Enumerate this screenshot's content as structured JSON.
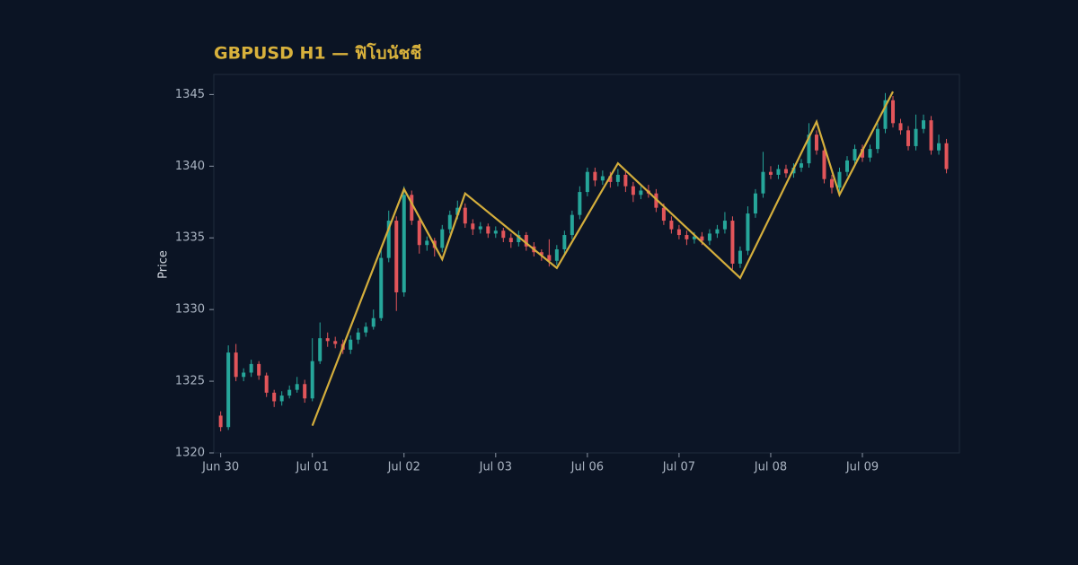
{
  "chart_data": {
    "type": "candlestick",
    "title": "GBPUSD H1 — ฟิโบนัชชี",
    "y_label": "Price",
    "up_color": "#26a69a",
    "down_color": "#e2555a",
    "xlim": [
      -0.9,
      96.7
    ],
    "xticks": [
      {
        "value": 0,
        "label": "Jun 30"
      },
      {
        "value": 12,
        "label": "Jul 01"
      },
      {
        "value": 24,
        "label": "Jul 02"
      },
      {
        "value": 36,
        "label": "Jul 03"
      },
      {
        "value": 48,
        "label": "Jul 06"
      },
      {
        "value": 60,
        "label": "Jul 07"
      },
      {
        "value": 72,
        "label": "Jul 08"
      },
      {
        "value": 84,
        "label": "Jul 09"
      }
    ],
    "ylim": [
      1320,
      1346.4
    ],
    "yticks": [
      1320,
      1325,
      1330,
      1335,
      1340,
      1345
    ],
    "open": [
      1322.6,
      1321.8,
      1327.0,
      1325.3,
      1325.6,
      1326.2,
      1325.4,
      1324.2,
      1323.6,
      1324.0,
      1324.4,
      1324.8,
      1323.8,
      1326.4,
      1328.0,
      1327.8,
      1327.6,
      1327.2,
      1327.9,
      1328.4,
      1328.8,
      1329.4,
      1333.6,
      1336.2,
      1331.2,
      1338.0,
      1336.2,
      1334.5,
      1334.8,
      1334.3,
      1335.6,
      1336.6,
      1337.1,
      1336.0,
      1335.6,
      1335.8,
      1335.3,
      1335.5,
      1335.0,
      1334.7,
      1335.2,
      1334.4,
      1334.0,
      1333.8,
      1333.4,
      1334.2,
      1335.2,
      1336.6,
      1338.2,
      1339.6,
      1339.0,
      1339.3,
      1338.9,
      1339.4,
      1338.6,
      1338.0,
      1338.3,
      1338.1,
      1337.1,
      1336.2,
      1335.6,
      1335.2,
      1334.9,
      1335.1,
      1334.8,
      1335.3,
      1335.6,
      1336.2,
      1333.2,
      1334.1,
      1336.7,
      1338.1,
      1339.6,
      1339.4,
      1339.8,
      1339.5,
      1339.9,
      1340.2,
      1342.2,
      1341.1,
      1339.1,
      1338.5,
      1339.6,
      1340.4,
      1341.2,
      1340.6,
      1341.2,
      1342.6,
      1344.6,
      1343.0,
      1342.5,
      1341.4,
      1342.6,
      1343.2,
      1341.1,
      1341.6
    ],
    "high": [
      1322.9,
      1327.5,
      1327.6,
      1325.9,
      1326.5,
      1326.4,
      1325.6,
      1324.4,
      1324.3,
      1324.7,
      1325.3,
      1325.1,
      1328.0,
      1329.1,
      1328.4,
      1328.1,
      1327.9,
      1328.2,
      1328.7,
      1329.1,
      1330.0,
      1334.2,
      1336.9,
      1336.5,
      1338.6,
      1338.3,
      1336.5,
      1335.1,
      1335.0,
      1335.9,
      1336.9,
      1337.6,
      1337.4,
      1336.3,
      1336.1,
      1336.0,
      1335.8,
      1335.7,
      1335.3,
      1335.5,
      1335.4,
      1334.7,
      1334.2,
      1334.9,
      1334.5,
      1335.5,
      1336.9,
      1338.6,
      1339.9,
      1339.9,
      1339.7,
      1339.6,
      1339.8,
      1339.7,
      1338.9,
      1338.6,
      1338.7,
      1338.4,
      1337.4,
      1336.5,
      1335.9,
      1335.5,
      1335.4,
      1335.4,
      1335.6,
      1335.9,
      1336.8,
      1336.5,
      1334.4,
      1337.2,
      1338.4,
      1341.0,
      1340.0,
      1340.1,
      1340.1,
      1340.2,
      1340.5,
      1343.0,
      1342.5,
      1341.4,
      1339.4,
      1339.9,
      1340.7,
      1341.5,
      1341.5,
      1341.5,
      1343.0,
      1345.1,
      1344.9,
      1343.3,
      1342.8,
      1343.6,
      1343.6,
      1343.5,
      1342.2,
      1341.9
    ],
    "low": [
      1321.5,
      1321.6,
      1325.0,
      1325.0,
      1325.3,
      1325.1,
      1323.9,
      1323.2,
      1323.3,
      1323.8,
      1324.2,
      1323.5,
      1323.6,
      1326.2,
      1327.4,
      1327.3,
      1326.9,
      1326.9,
      1327.6,
      1328.1,
      1328.6,
      1329.2,
      1333.3,
      1329.9,
      1330.9,
      1335.9,
      1333.9,
      1334.1,
      1333.7,
      1334.0,
      1335.3,
      1336.3,
      1335.7,
      1335.2,
      1335.3,
      1335.0,
      1335.0,
      1334.7,
      1334.3,
      1334.4,
      1334.1,
      1333.7,
      1333.4,
      1333.0,
      1333.1,
      1333.9,
      1334.9,
      1336.3,
      1337.9,
      1338.6,
      1338.7,
      1338.5,
      1338.6,
      1338.2,
      1337.5,
      1337.7,
      1337.8,
      1336.8,
      1335.9,
      1335.3,
      1334.9,
      1334.5,
      1334.6,
      1334.5,
      1334.5,
      1335.0,
      1335.3,
      1332.8,
      1332.9,
      1333.8,
      1336.4,
      1337.8,
      1339.1,
      1339.1,
      1339.2,
      1339.2,
      1339.6,
      1339.9,
      1340.8,
      1338.8,
      1338.1,
      1338.2,
      1339.3,
      1340.1,
      1340.3,
      1340.3,
      1340.9,
      1342.3,
      1342.7,
      1342.2,
      1341.1,
      1341.1,
      1342.3,
      1340.8,
      1340.8,
      1339.5
    ],
    "close": [
      1321.8,
      1327.0,
      1325.3,
      1325.6,
      1326.2,
      1325.4,
      1324.2,
      1323.6,
      1324.0,
      1324.4,
      1324.8,
      1323.8,
      1326.4,
      1328.0,
      1327.8,
      1327.6,
      1327.2,
      1327.9,
      1328.4,
      1328.8,
      1329.4,
      1333.6,
      1336.2,
      1331.2,
      1338.0,
      1336.2,
      1334.5,
      1334.8,
      1334.3,
      1335.6,
      1336.6,
      1337.1,
      1336.0,
      1335.6,
      1335.8,
      1335.3,
      1335.5,
      1335.0,
      1334.7,
      1335.2,
      1334.4,
      1334.0,
      1333.8,
      1333.4,
      1334.2,
      1335.2,
      1336.6,
      1338.2,
      1339.6,
      1339.0,
      1339.3,
      1338.9,
      1339.4,
      1338.6,
      1338.0,
      1338.3,
      1338.1,
      1337.1,
      1336.2,
      1335.6,
      1335.2,
      1334.9,
      1335.1,
      1334.8,
      1335.3,
      1335.6,
      1336.2,
      1333.2,
      1334.1,
      1336.7,
      1338.1,
      1339.6,
      1339.4,
      1339.8,
      1339.5,
      1339.9,
      1340.2,
      1342.2,
      1341.1,
      1339.1,
      1338.5,
      1339.6,
      1340.4,
      1341.2,
      1340.6,
      1341.2,
      1342.6,
      1344.6,
      1343.0,
      1342.5,
      1341.4,
      1342.6,
      1343.2,
      1341.1,
      1341.6,
      1339.8
    ],
    "zigzag": {
      "color": "#d4ae3c",
      "x": [
        12,
        24,
        29,
        32,
        44,
        52,
        68,
        78,
        81,
        88
      ],
      "values": [
        1321.9,
        1338.4,
        1333.5,
        1338.1,
        1332.9,
        1340.2,
        1332.2,
        1343.1,
        1338.0,
        1345.2
      ]
    }
  }
}
